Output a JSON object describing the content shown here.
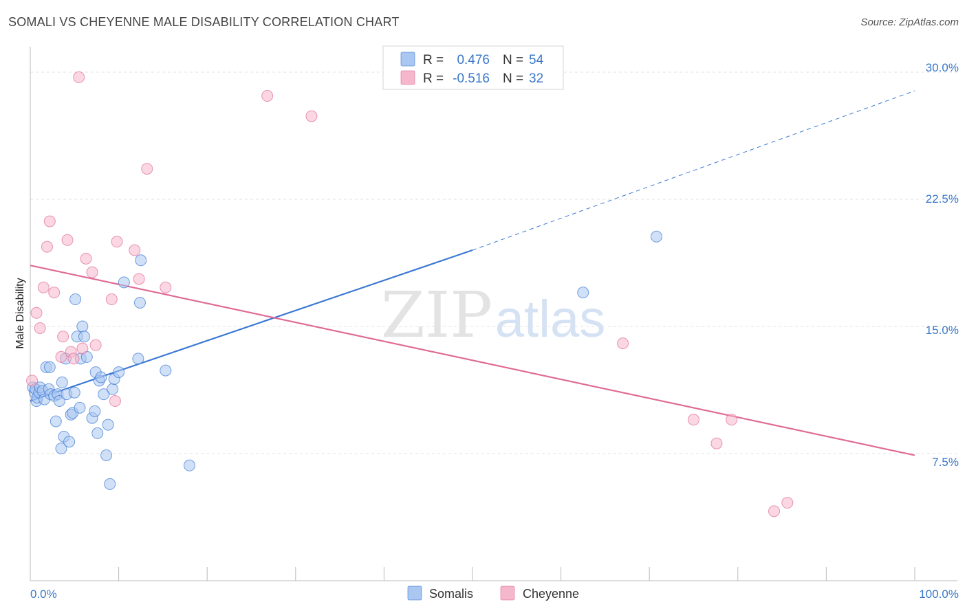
{
  "header": {
    "title": "SOMALI VS CHEYENNE MALE DISABILITY CORRELATION CHART",
    "source": "Source: ZipAtlas.com"
  },
  "watermark": {
    "zip": "ZIP",
    "atlas": "atlas"
  },
  "stats": {
    "r_label": "R =",
    "n_label": "N =",
    "rows": [
      {
        "r": "0.476",
        "n": "54",
        "color": "#a9c7f0"
      },
      {
        "r": "-0.516",
        "n": "32",
        "color": "#f5b7cb"
      }
    ]
  },
  "chart_data": {
    "type": "scatter",
    "title": "SOMALI VS CHEYENNE MALE DISABILITY CORRELATION CHART",
    "xlabel": "",
    "ylabel": "Male Disability",
    "xlim": [
      0,
      100
    ],
    "ylim": [
      0,
      31.5
    ],
    "x_tick_labels": [
      "0.0%",
      "100.0%"
    ],
    "y_ticks": [
      7.5,
      15.0,
      22.5,
      30.0
    ],
    "y_tick_labels": [
      "7.5%",
      "15.0%",
      "22.5%",
      "30.0%"
    ],
    "grid": true,
    "legend_position": "bottom-center",
    "series": [
      {
        "name": "Somalis",
        "color": "#3a78d4",
        "fill": "#a9c7f0",
        "trend": {
          "x0": 0,
          "y0": 10.6,
          "x1": 50,
          "y1": 19.5,
          "dashed_to_x": 100,
          "dashed_to_y": 28.9
        },
        "points": [
          [
            0.3,
            11.4
          ],
          [
            0.5,
            11.1
          ],
          [
            0.6,
            11.3
          ],
          [
            0.7,
            10.6
          ],
          [
            0.8,
            10.8
          ],
          [
            1.0,
            11.1
          ],
          [
            1.1,
            11.4
          ],
          [
            1.4,
            11.2
          ],
          [
            1.6,
            10.7
          ],
          [
            1.8,
            12.6
          ],
          [
            2.1,
            11.3
          ],
          [
            2.2,
            12.6
          ],
          [
            2.3,
            11.0
          ],
          [
            2.7,
            10.9
          ],
          [
            2.9,
            9.4
          ],
          [
            3.1,
            11.0
          ],
          [
            3.3,
            10.6
          ],
          [
            3.5,
            7.8
          ],
          [
            3.6,
            11.7
          ],
          [
            3.8,
            8.5
          ],
          [
            4.0,
            13.1
          ],
          [
            4.1,
            11.0
          ],
          [
            4.4,
            8.2
          ],
          [
            4.6,
            9.8
          ],
          [
            4.8,
            9.9
          ],
          [
            5.0,
            11.1
          ],
          [
            5.1,
            16.6
          ],
          [
            5.3,
            14.4
          ],
          [
            5.6,
            10.2
          ],
          [
            5.7,
            13.1
          ],
          [
            5.9,
            15.0
          ],
          [
            6.1,
            14.4
          ],
          [
            6.4,
            13.2
          ],
          [
            7.0,
            9.6
          ],
          [
            7.3,
            10.0
          ],
          [
            7.4,
            12.3
          ],
          [
            7.6,
            8.7
          ],
          [
            7.8,
            11.8
          ],
          [
            8.0,
            12.0
          ],
          [
            8.3,
            11.0
          ],
          [
            8.6,
            7.4
          ],
          [
            8.8,
            9.2
          ],
          [
            9.0,
            5.7
          ],
          [
            9.3,
            11.3
          ],
          [
            9.5,
            11.9
          ],
          [
            10.0,
            12.3
          ],
          [
            10.6,
            17.6
          ],
          [
            12.2,
            13.1
          ],
          [
            12.4,
            16.4
          ],
          [
            12.5,
            18.9
          ],
          [
            15.3,
            12.4
          ],
          [
            18.0,
            6.8
          ],
          [
            62.5,
            17.0
          ],
          [
            70.8,
            20.3
          ]
        ]
      },
      {
        "name": "Cheyenne",
        "color": "#e06b96",
        "fill": "#f5b7cb",
        "trend": {
          "x0": 0,
          "y0": 18.6,
          "x1": 100,
          "y1": 7.4
        },
        "points": [
          [
            0.2,
            11.8
          ],
          [
            0.7,
            15.8
          ],
          [
            1.1,
            14.9
          ],
          [
            1.5,
            17.3
          ],
          [
            1.9,
            19.7
          ],
          [
            2.2,
            21.2
          ],
          [
            2.7,
            17.0
          ],
          [
            3.5,
            13.2
          ],
          [
            3.7,
            14.4
          ],
          [
            4.2,
            20.1
          ],
          [
            4.6,
            13.5
          ],
          [
            4.9,
            13.1
          ],
          [
            5.5,
            29.7
          ],
          [
            5.9,
            13.7
          ],
          [
            6.3,
            19.0
          ],
          [
            7.0,
            18.2
          ],
          [
            7.4,
            13.9
          ],
          [
            9.2,
            16.6
          ],
          [
            9.6,
            10.6
          ],
          [
            9.8,
            20.0
          ],
          [
            11.8,
            19.5
          ],
          [
            12.3,
            17.8
          ],
          [
            13.2,
            24.3
          ],
          [
            15.3,
            17.3
          ],
          [
            26.8,
            28.6
          ],
          [
            31.8,
            27.4
          ],
          [
            67.0,
            14.0
          ],
          [
            75.0,
            9.5
          ],
          [
            77.6,
            8.1
          ],
          [
            79.3,
            9.5
          ],
          [
            84.1,
            4.1
          ],
          [
            85.6,
            4.6
          ]
        ]
      }
    ]
  }
}
